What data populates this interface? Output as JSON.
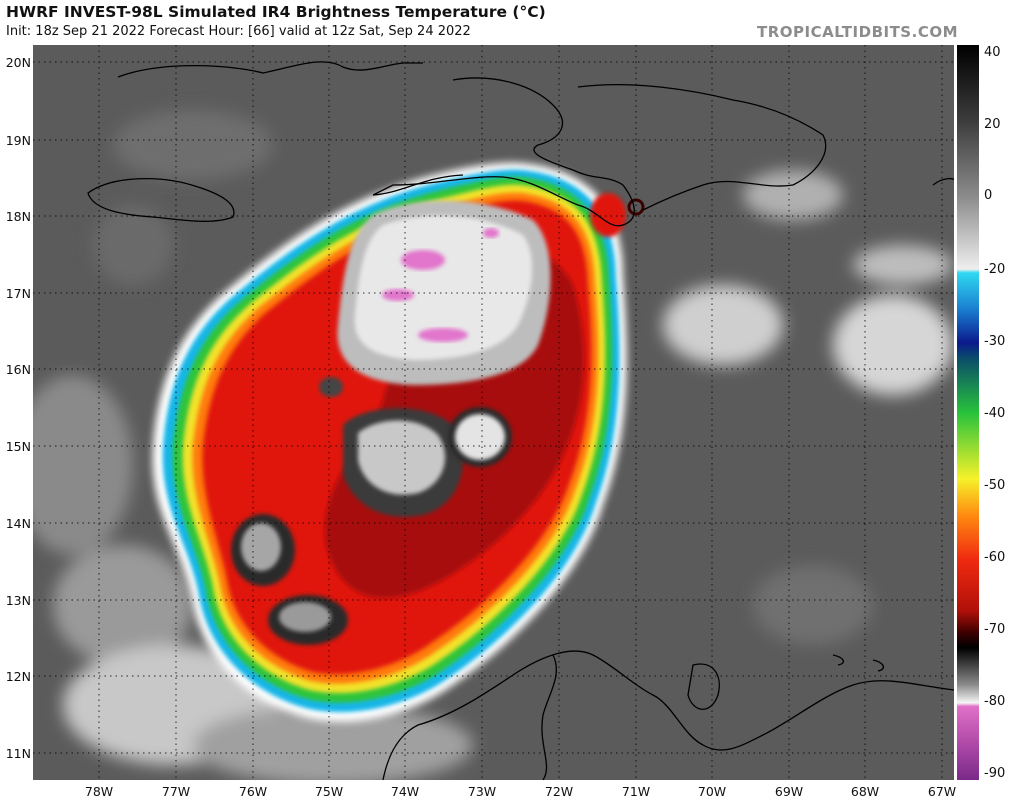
{
  "header": {
    "title": "HWRF INVEST-98L Simulated IR4 Brightness Temperature (°C)",
    "subtitle": "Init: 18z Sep 21 2022   Forecast Hour: [66]   valid at 12z Sat, Sep 24 2022",
    "credit": "TROPICALTIDBITS.COM"
  },
  "map": {
    "lat_labels": [
      "20N",
      "19N",
      "18N",
      "17N",
      "16N",
      "15N",
      "14N",
      "13N",
      "12N",
      "11N"
    ],
    "lon_labels": [
      "78W",
      "77W",
      "76W",
      "75W",
      "74W",
      "73W",
      "72W",
      "71W",
      "70W",
      "69W",
      "68W",
      "67W"
    ],
    "features": [
      "storm-cloud-shield",
      "coastlines",
      "grid-lines"
    ]
  },
  "colorbar": {
    "labels": [
      "40",
      "20",
      "0",
      "-20",
      "-30",
      "-40",
      "-50",
      "-60",
      "-70",
      "-80",
      "-90"
    ],
    "colors": [
      "#000000",
      "#707070",
      "#e8e8e8",
      "#2fd8f0",
      "#0b1a8c",
      "#27c23c",
      "#f6f22a",
      "#ff8a10",
      "#e01a10",
      "#3a0000",
      "#ffffff",
      "#e070c8",
      "#7a2a8a"
    ]
  }
}
